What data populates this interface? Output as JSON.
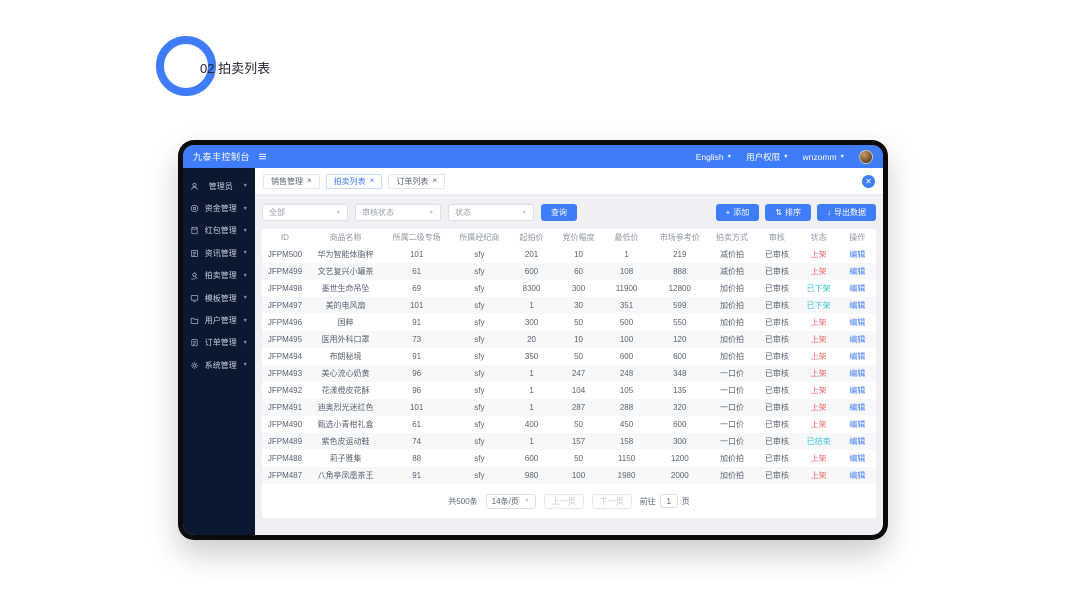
{
  "annotation": {
    "label": "02 拍卖列表"
  },
  "colors": {
    "accent": "#3e7cfa",
    "sidebar_bg": "#0a1930",
    "status_on_shelf": "#f56c6c",
    "status_off_shelf": "#3ec9d6"
  },
  "titlebar": {
    "title": "九泰丰控制台",
    "menus": [
      {
        "label": "English"
      },
      {
        "label": "用户权限"
      },
      {
        "label": "wnzomm"
      }
    ]
  },
  "sidebar": {
    "items": [
      {
        "icon": "user-icon",
        "label": "管理员"
      },
      {
        "icon": "coin-icon",
        "label": "资金管理"
      },
      {
        "icon": "red-packet-icon",
        "label": "红包管理"
      },
      {
        "icon": "news-icon",
        "label": "资讯管理"
      },
      {
        "icon": "auction-icon",
        "label": "拍卖管理"
      },
      {
        "icon": "template-icon",
        "label": "模板管理"
      },
      {
        "icon": "folder-icon",
        "label": "用户管理"
      },
      {
        "icon": "order-icon",
        "label": "订单管理"
      },
      {
        "icon": "gear-icon",
        "label": "系统管理"
      }
    ]
  },
  "tabs": [
    {
      "label": "销售管理",
      "active": false
    },
    {
      "label": "拍卖列表",
      "active": true
    },
    {
      "label": "订单列表",
      "active": false
    }
  ],
  "filters": {
    "selects": [
      {
        "placeholder": "全部"
      },
      {
        "placeholder": "审核状态"
      },
      {
        "placeholder": "状态"
      }
    ],
    "search_button": "查询"
  },
  "actions": [
    {
      "icon": "plus-icon",
      "glyph": "+",
      "label": "添加"
    },
    {
      "icon": "sort-icon",
      "glyph": "⇅",
      "label": "排序"
    },
    {
      "icon": "export-icon",
      "glyph": "↓",
      "label": "导出数据"
    }
  ],
  "table": {
    "columns": [
      "ID",
      "商品名称",
      "所属二级专场",
      "所属经纪商",
      "起拍价",
      "竞价幅度",
      "最低价",
      "市场参考价",
      "拍卖方式",
      "审核",
      "状态",
      "操作"
    ],
    "rows": [
      {
        "id": "JFPM500",
        "name": "华为智能体脂秤",
        "session": "101",
        "broker": "sfy",
        "start": "201",
        "step": "10",
        "min": "1",
        "ref": "219",
        "method": "减价拍",
        "audit": "已审核",
        "status": "上架",
        "status_type": "red",
        "action": "编辑"
      },
      {
        "id": "JFPM499",
        "name": "文艺复兴小罐茶",
        "session": "61",
        "broker": "sfy",
        "start": "600",
        "step": "60",
        "min": "108",
        "ref": "888",
        "method": "减价拍",
        "audit": "已审核",
        "status": "上架",
        "status_type": "red",
        "action": "编辑"
      },
      {
        "id": "JFPM498",
        "name": "墨世生命吊坠",
        "session": "69",
        "broker": "sfy",
        "start": "8300",
        "step": "300",
        "min": "11900",
        "ref": "12800",
        "method": "加价拍",
        "audit": "已审核",
        "status": "已下架",
        "status_type": "cyan",
        "action": "编辑"
      },
      {
        "id": "JFPM497",
        "name": "美的电风扇",
        "session": "101",
        "broker": "sfy",
        "start": "1",
        "step": "30",
        "min": "351",
        "ref": "599",
        "method": "加价拍",
        "audit": "已审核",
        "status": "已下架",
        "status_type": "cyan",
        "action": "编辑"
      },
      {
        "id": "JFPM496",
        "name": "国粹",
        "session": "91",
        "broker": "sfy",
        "start": "300",
        "step": "50",
        "min": "500",
        "ref": "550",
        "method": "加价拍",
        "audit": "已审核",
        "status": "上架",
        "status_type": "red",
        "action": "编辑"
      },
      {
        "id": "JFPM495",
        "name": "医用外科口罩",
        "session": "73",
        "broker": "sfy",
        "start": "20",
        "step": "10",
        "min": "100",
        "ref": "120",
        "method": "加价拍",
        "audit": "已审核",
        "status": "上架",
        "status_type": "red",
        "action": "编辑"
      },
      {
        "id": "JFPM494",
        "name": "布朗秘境",
        "session": "91",
        "broker": "sfy",
        "start": "350",
        "step": "50",
        "min": "600",
        "ref": "600",
        "method": "加价拍",
        "audit": "已审核",
        "status": "上架",
        "status_type": "red",
        "action": "编辑"
      },
      {
        "id": "JFPM493",
        "name": "美心流心奶黄",
        "session": "96",
        "broker": "sfy",
        "start": "1",
        "step": "247",
        "min": "248",
        "ref": "348",
        "method": "一口价",
        "audit": "已审核",
        "status": "上架",
        "status_type": "red",
        "action": "编辑"
      },
      {
        "id": "JFPM492",
        "name": "花漾橙皮花酥",
        "session": "96",
        "broker": "sfy",
        "start": "1",
        "step": "104",
        "min": "105",
        "ref": "135",
        "method": "一口价",
        "audit": "已审核",
        "status": "上架",
        "status_type": "red",
        "action": "编辑"
      },
      {
        "id": "JFPM491",
        "name": "迪奥烈光迷红色",
        "session": "101",
        "broker": "sfy",
        "start": "1",
        "step": "287",
        "min": "288",
        "ref": "320",
        "method": "一口价",
        "audit": "已审核",
        "status": "上架",
        "status_type": "red",
        "action": "编辑"
      },
      {
        "id": "JFPM490",
        "name": "甄选小青柑礼盒",
        "session": "61",
        "broker": "sfy",
        "start": "400",
        "step": "50",
        "min": "450",
        "ref": "600",
        "method": "一口价",
        "audit": "已审核",
        "status": "上架",
        "status_type": "red",
        "action": "编辑"
      },
      {
        "id": "JFPM489",
        "name": "紫色皮运动鞋",
        "session": "74",
        "broker": "sfy",
        "start": "1",
        "step": "157",
        "min": "158",
        "ref": "300",
        "method": "一口价",
        "audit": "已审核",
        "status": "已结束",
        "status_type": "cyan",
        "action": "编辑"
      },
      {
        "id": "JFPM488",
        "name": "莉子雅集",
        "session": "88",
        "broker": "sfy",
        "start": "600",
        "step": "50",
        "min": "1150",
        "ref": "1200",
        "method": "加价拍",
        "audit": "已审核",
        "status": "上架",
        "status_type": "red",
        "action": "编辑"
      },
      {
        "id": "JFPM487",
        "name": "八角亭凤凰茶王",
        "session": "91",
        "broker": "sfy",
        "start": "980",
        "step": "100",
        "min": "1980",
        "ref": "2000",
        "method": "加价拍",
        "audit": "已审核",
        "status": "上架",
        "status_type": "red",
        "action": "编辑"
      }
    ]
  },
  "pagination": {
    "total": "共500条",
    "page_size": "14条/页",
    "prev": "上一页",
    "next": "下一页",
    "goto_prefix": "前往",
    "goto_value": "1",
    "goto_suffix": "页"
  }
}
